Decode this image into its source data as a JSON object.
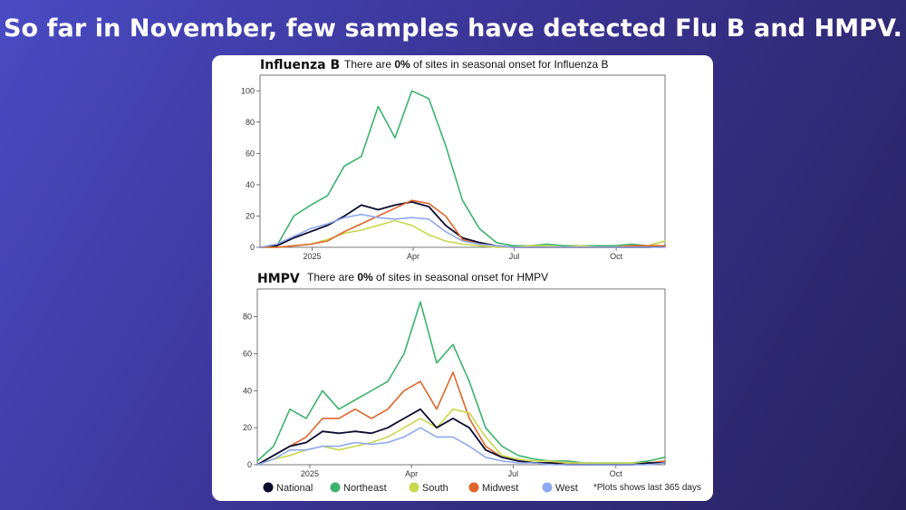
{
  "slide": {
    "title": "So far in November, few samples have detected Flu B and HMPV."
  },
  "colors": {
    "National": "#0b0b2e",
    "Northeast": "#3cb36c",
    "South": "#c8d84c",
    "Midwest": "#e0652a",
    "West": "#8fa9f0"
  },
  "legend": [
    "National",
    "Northeast",
    "South",
    "Midwest",
    "West"
  ],
  "footnote": "*Plots shows last 365 days",
  "chart_data": [
    {
      "type": "line",
      "title": "Influenza B",
      "subtitle_before": "There are ",
      "subtitle_bold": "0%",
      "subtitle_after": " of sites in seasonal onset for Influenza B",
      "x_ticks": [
        "2025",
        "Apr",
        "Jul",
        "Oct"
      ],
      "y_ticks": [
        0,
        20,
        40,
        60,
        80,
        100
      ],
      "ylim": [
        0,
        110
      ],
      "x": [
        "Nov 15",
        "Dec 1",
        "Dec 15",
        "Jan 1",
        "Jan 15",
        "Feb 1",
        "Feb 15",
        "Mar 1",
        "Mar 15",
        "Apr 1",
        "Apr 15",
        "May 1",
        "May 15",
        "Jun 1",
        "Jun 15",
        "Jul 1",
        "Jul 15",
        "Aug 1",
        "Aug 15",
        "Sep 1",
        "Sep 15",
        "Oct 1",
        "Oct 15",
        "Nov 1",
        "Nov 10"
      ],
      "series": [
        {
          "name": "Northeast",
          "values": [
            0,
            1,
            20,
            27,
            33,
            52,
            58,
            90,
            70,
            100,
            95,
            65,
            30,
            12,
            3,
            1,
            1,
            2,
            1,
            1,
            1,
            1,
            2,
            1,
            4
          ]
        },
        {
          "name": "National",
          "values": [
            0,
            1,
            6,
            10,
            14,
            20,
            27,
            24,
            27,
            29,
            26,
            14,
            6,
            3,
            1,
            0,
            0,
            0,
            0,
            0,
            0,
            0,
            0,
            0,
            1
          ]
        },
        {
          "name": "South",
          "values": [
            0,
            0,
            1,
            2,
            5,
            9,
            11,
            14,
            17,
            14,
            8,
            4,
            2,
            1,
            0,
            0,
            1,
            1,
            0,
            1,
            0,
            0,
            1,
            1,
            4
          ]
        },
        {
          "name": "Midwest",
          "values": [
            0,
            0,
            1,
            2,
            4,
            10,
            15,
            20,
            25,
            30,
            28,
            20,
            5,
            2,
            1,
            0,
            0,
            0,
            0,
            0,
            0,
            0,
            1,
            1,
            1
          ]
        },
        {
          "name": "West",
          "values": [
            0,
            2,
            7,
            12,
            15,
            19,
            21,
            19,
            18,
            19,
            18,
            10,
            4,
            2,
            1,
            0,
            0,
            0,
            0,
            0,
            0,
            0,
            0,
            0,
            0
          ]
        }
      ]
    },
    {
      "type": "line",
      "title": "HMPV",
      "subtitle_before": "There are ",
      "subtitle_bold": "0%",
      "subtitle_after": " of sites in seasonal onset for HMPV",
      "x_ticks": [
        "2025",
        "Apr",
        "Jul",
        "Oct"
      ],
      "y_ticks": [
        0,
        20,
        40,
        60,
        80
      ],
      "ylim": [
        0,
        95
      ],
      "x": [
        "Nov 15",
        "Dec 1",
        "Dec 15",
        "Jan 1",
        "Jan 15",
        "Feb 1",
        "Feb 15",
        "Mar 1",
        "Mar 15",
        "Apr 1",
        "Apr 8",
        "Apr 15",
        "May 1",
        "May 15",
        "Jun 1",
        "Jun 15",
        "Jul 1",
        "Jul 15",
        "Aug 1",
        "Aug 15",
        "Sep 1",
        "Sep 15",
        "Oct 1",
        "Oct 15",
        "Nov 1",
        "Nov 10"
      ],
      "series": [
        {
          "name": "Northeast",
          "values": [
            2,
            10,
            30,
            25,
            40,
            30,
            35,
            40,
            45,
            60,
            88,
            55,
            65,
            45,
            20,
            10,
            5,
            3,
            2,
            2,
            1,
            1,
            1,
            1,
            2,
            4
          ]
        },
        {
          "name": "Midwest",
          "values": [
            0,
            5,
            10,
            15,
            25,
            25,
            30,
            25,
            30,
            40,
            45,
            30,
            50,
            25,
            10,
            4,
            2,
            1,
            1,
            1,
            0,
            0,
            0,
            0,
            1,
            2
          ]
        },
        {
          "name": "South",
          "values": [
            0,
            3,
            5,
            8,
            10,
            8,
            10,
            12,
            15,
            20,
            25,
            20,
            30,
            28,
            15,
            5,
            3,
            2,
            2,
            1,
            1,
            1,
            1,
            1,
            1,
            1
          ]
        },
        {
          "name": "National",
          "values": [
            0,
            5,
            10,
            12,
            18,
            17,
            18,
            17,
            20,
            25,
            30,
            20,
            25,
            20,
            8,
            4,
            2,
            1,
            1,
            0,
            0,
            0,
            0,
            0,
            1,
            1
          ]
        },
        {
          "name": "West",
          "values": [
            0,
            3,
            8,
            8,
            10,
            10,
            12,
            11,
            12,
            15,
            20,
            15,
            15,
            10,
            4,
            2,
            1,
            1,
            0,
            0,
            0,
            0,
            0,
            0,
            0,
            1
          ]
        }
      ]
    }
  ]
}
